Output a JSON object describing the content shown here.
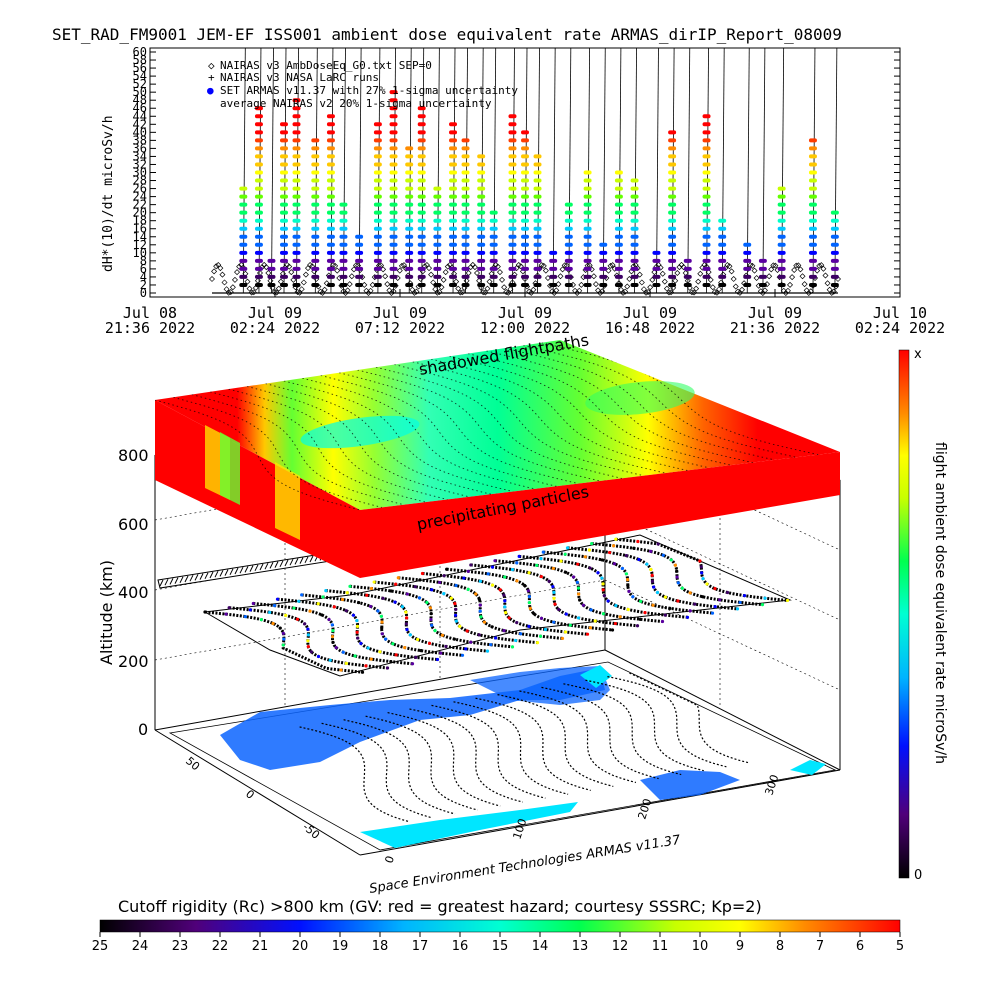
{
  "title": "SET_RAD_FM9001  JEM-EF ISS001 ambient dose equivalent rate ARMAS_dirIP_Report_08009",
  "chart_data": [
    {
      "type": "scatter",
      "ylabel": "dH*(10)/dt microSv/h",
      "ylim": [
        0,
        60
      ],
      "y_ticks": [
        "0",
        "2",
        "4",
        "6",
        "8",
        "10",
        "12",
        "14",
        "16",
        "18",
        "20",
        "22",
        "24",
        "26",
        "28",
        "30",
        "32",
        "34",
        "36",
        "38",
        "40",
        "42",
        "44",
        "46",
        "48",
        "50",
        "52",
        "54",
        "56",
        "58",
        "60"
      ],
      "x_ticks": [
        {
          "date": "Jul 08",
          "time": "21:36  2022"
        },
        {
          "date": "Jul 09",
          "time": "02:24  2022"
        },
        {
          "date": "Jul 09",
          "time": "07:12  2022"
        },
        {
          "date": "Jul 09",
          "time": "12:00  2022"
        },
        {
          "date": "Jul 09",
          "time": "16:48  2022"
        },
        {
          "date": "Jul 09",
          "time": "21:36  2022"
        },
        {
          "date": "Jul 10",
          "time": "02:24  2022"
        }
      ],
      "legend": [
        {
          "symbol": "◇",
          "label": "NAIRAS v3 AmbDoseEq_G0.txt SEP=0"
        },
        {
          "symbol": "+",
          "label": "NAIRAS v3 NASA LaRC runs"
        },
        {
          "symbol": "●",
          "label": "SET ARMAS v11.37 with 27% 1-sigma uncertainty"
        },
        {
          "symbol": "",
          "label": "average NAIRAS v2 20% 1-sigma uncertainty"
        }
      ],
      "legend_position": "top-left",
      "series": [
        {
          "name": "SET ARMAS v11.37 with 27% 1-sigma uncertainty",
          "spikes": [
            {
              "t": 0.05,
              "peak": 26
            },
            {
              "t": 0.075,
              "peak": 46
            },
            {
              "t": 0.095,
              "peak": 8
            },
            {
              "t": 0.115,
              "peak": 42
            },
            {
              "t": 0.135,
              "peak": 48
            },
            {
              "t": 0.165,
              "peak": 38
            },
            {
              "t": 0.19,
              "peak": 44
            },
            {
              "t": 0.21,
              "peak": 22
            },
            {
              "t": 0.235,
              "peak": 14
            },
            {
              "t": 0.265,
              "peak": 42
            },
            {
              "t": 0.29,
              "peak": 50
            },
            {
              "t": 0.315,
              "peak": 36
            },
            {
              "t": 0.335,
              "peak": 46
            },
            {
              "t": 0.36,
              "peak": 26
            },
            {
              "t": 0.385,
              "peak": 42
            },
            {
              "t": 0.405,
              "peak": 38
            },
            {
              "t": 0.43,
              "peak": 34
            },
            {
              "t": 0.45,
              "peak": 20
            },
            {
              "t": 0.48,
              "peak": 44
            },
            {
              "t": 0.5,
              "peak": 40
            },
            {
              "t": 0.52,
              "peak": 34
            },
            {
              "t": 0.545,
              "peak": 10
            },
            {
              "t": 0.57,
              "peak": 22
            },
            {
              "t": 0.6,
              "peak": 30
            },
            {
              "t": 0.625,
              "peak": 12
            },
            {
              "t": 0.65,
              "peak": 30
            },
            {
              "t": 0.675,
              "peak": 28
            },
            {
              "t": 0.71,
              "peak": 10
            },
            {
              "t": 0.735,
              "peak": 40
            },
            {
              "t": 0.76,
              "peak": 8
            },
            {
              "t": 0.79,
              "peak": 44
            },
            {
              "t": 0.815,
              "peak": 18
            },
            {
              "t": 0.855,
              "peak": 12
            },
            {
              "t": 0.88,
              "peak": 8
            },
            {
              "t": 0.91,
              "peak": 26
            },
            {
              "t": 0.96,
              "peak": 38
            },
            {
              "t": 0.995,
              "peak": 20
            }
          ]
        }
      ],
      "baseline_range": [
        0,
        7
      ]
    },
    {
      "type": "surface3d",
      "zlabel": "Altitude (km)",
      "z_ticks": [
        "0",
        "200",
        "400",
        "600",
        "800"
      ],
      "lat_ticks": [
        "50",
        "0",
        "-50"
      ],
      "lon_ticks": [
        "0",
        "100",
        "200",
        "300"
      ],
      "annotations": [
        "shadowed flightpaths",
        "precipitating particles"
      ],
      "credit": "Space Environment Technologies ARMAS v11.37"
    },
    {
      "type": "colorbar",
      "orientation": "vertical",
      "label": "flight ambient dose equivalent rate microSv/h",
      "top_label": "x",
      "bottom_label": "0"
    },
    {
      "type": "colorbar",
      "orientation": "horizontal",
      "label": "Cutoff rigidity (Rc) >800 km (GV: red = greatest hazard; courtesy SSSRC; Kp=2)",
      "ticks": [
        "25",
        "24",
        "23",
        "22",
        "21",
        "20",
        "19",
        "18",
        "17",
        "16",
        "15",
        "14",
        "13",
        "12",
        "11",
        "10",
        "9",
        "8",
        "7",
        "6",
        "5"
      ]
    }
  ],
  "colors": {
    "palette": [
      "#000000",
      "#3c0064",
      "#5a00a0",
      "#0000ff",
      "#0064ff",
      "#00c8ff",
      "#00ffc8",
      "#00ff64",
      "#64ff00",
      "#c8ff00",
      "#ffff00",
      "#ffc800",
      "#ff8c00",
      "#ff3c00",
      "#ff0000"
    ],
    "land": "#0a64ff",
    "ice": "#00e6ff"
  }
}
